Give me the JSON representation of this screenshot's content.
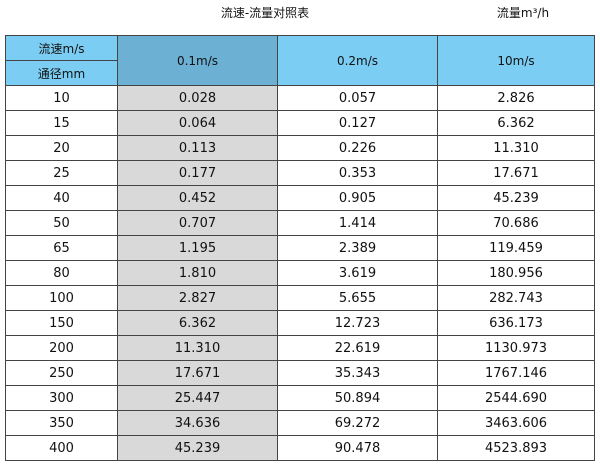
{
  "title": "流速-流量对照表",
  "unit_label": "流量m³/h",
  "colors": {
    "header": "#7ccdf4",
    "selected_header": "#6cb0d4",
    "highlight_column": "#d9d9d9"
  },
  "header": {
    "velocity_label": "流速m/s",
    "diameter_label": "通径mm",
    "columns": [
      "0.1m/s",
      "0.2m/s",
      "10m/s"
    ]
  },
  "rows": [
    [
      "10",
      "0.028",
      "0.057",
      "2.826"
    ],
    [
      "15",
      "0.064",
      "0.127",
      "6.362"
    ],
    [
      "20",
      "0.113",
      "0.226",
      "11.310"
    ],
    [
      "25",
      "0.177",
      "0.353",
      "17.671"
    ],
    [
      "40",
      "0.452",
      "0.905",
      "45.239"
    ],
    [
      "50",
      "0.707",
      "1.414",
      "70.686"
    ],
    [
      "65",
      "1.195",
      "2.389",
      "119.459"
    ],
    [
      "80",
      "1.810",
      "3.619",
      "180.956"
    ],
    [
      "100",
      "2.827",
      "5.655",
      "282.743"
    ],
    [
      "150",
      "6.362",
      "12.723",
      "636.173"
    ],
    [
      "200",
      "11.310",
      "22.619",
      "1130.973"
    ],
    [
      "250",
      "17.671",
      "35.343",
      "1767.146"
    ],
    [
      "300",
      "25.447",
      "50.894",
      "2544.690"
    ],
    [
      "350",
      "34.636",
      "69.272",
      "3463.606"
    ],
    [
      "400",
      "45.239",
      "90.478",
      "4523.893"
    ]
  ]
}
